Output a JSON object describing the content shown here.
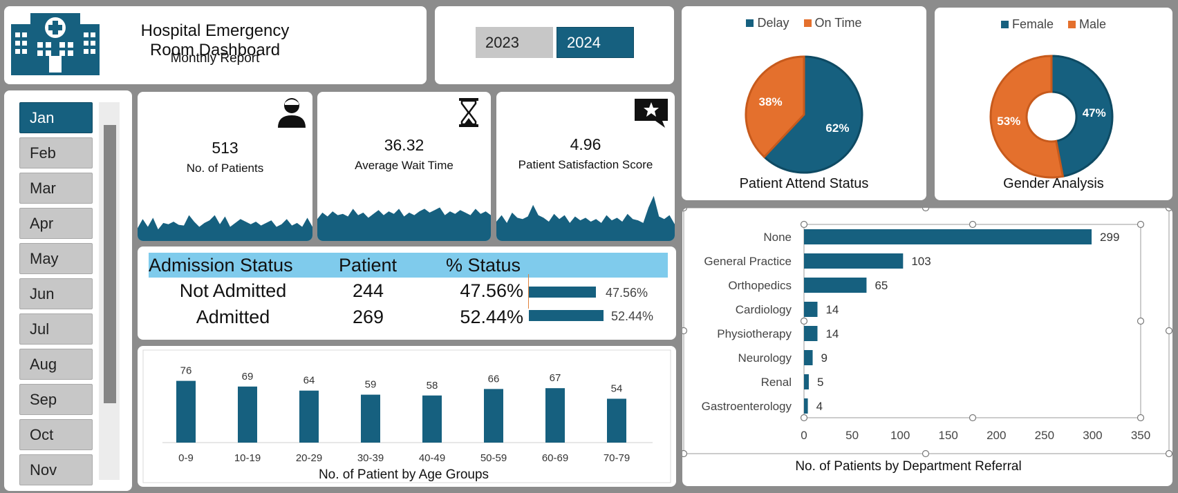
{
  "header": {
    "title": "Hospital Emergency Room Dashboard",
    "subtitle": "Monthly Report"
  },
  "years": [
    {
      "label": "2023",
      "selected": false
    },
    {
      "label": "2024",
      "selected": true
    }
  ],
  "months": [
    "Jan",
    "Feb",
    "Mar",
    "Apr",
    "May",
    "Jun",
    "Jul",
    "Aug",
    "Sep",
    "Oct",
    "Nov"
  ],
  "selected_month": "Jan",
  "icons": {
    "logo": "hospital-icon",
    "patients": "person-icon",
    "wait": "hourglass-icon",
    "satisfaction": "star-chat-icon"
  },
  "colors": {
    "primary": "#16607f",
    "accent": "#e4702d",
    "header_blue": "#7fcbec"
  },
  "kpis": {
    "patients": {
      "value": "513",
      "label": "No. of Patients"
    },
    "wait": {
      "value": "36.32",
      "label": "Average Wait Time"
    },
    "satisfaction": {
      "value": "4.96",
      "label": "Patient Satisfaction Score"
    }
  },
  "admission": {
    "headers": [
      "Admission Status",
      "Patient",
      "% Status"
    ],
    "rows": [
      {
        "status": "Not Admitted",
        "patients": "244",
        "pct": "47.56%",
        "bar_value": 47.56
      },
      {
        "status": "Admitted",
        "patients": "269",
        "pct": "52.44%",
        "bar_value": 52.44
      }
    ]
  },
  "chart_data": [
    {
      "type": "pie",
      "title": "Patient Attend Status",
      "legend": "top",
      "categories": [
        "Delay",
        "On Time"
      ],
      "values": [
        62,
        38
      ],
      "labels": [
        "62%",
        "38%"
      ],
      "colors": [
        "#16607f",
        "#e4702d"
      ]
    },
    {
      "type": "pie",
      "title": "Gender Analysis",
      "legend": "top",
      "categories": [
        "Female",
        "Male"
      ],
      "values": [
        47,
        53
      ],
      "labels": [
        "47%",
        "53%"
      ],
      "colors": [
        "#16607f",
        "#e4702d"
      ]
    },
    {
      "type": "bar",
      "title": "No. of Patient by Age Groups",
      "categories": [
        "0-9",
        "10-19",
        "20-29",
        "30-39",
        "40-49",
        "50-59",
        "60-69",
        "70-79"
      ],
      "values": [
        76,
        69,
        64,
        59,
        58,
        66,
        67,
        54
      ],
      "ylim": [
        0,
        85
      ]
    },
    {
      "type": "bar",
      "orientation": "horizontal",
      "title": "No. of Patients by Department Referral",
      "categories": [
        "None",
        "General Practice",
        "Orthopedics",
        "Cardiology",
        "Physiotherapy",
        "Neurology",
        "Renal",
        "Gastroenterology"
      ],
      "values": [
        299,
        103,
        65,
        14,
        14,
        9,
        5,
        4
      ],
      "xlim": [
        0,
        350
      ],
      "xticks": [
        "0",
        "50",
        "100",
        "150",
        "200",
        "250",
        "300",
        "350"
      ]
    },
    {
      "type": "area",
      "title": "",
      "series": [
        {
          "values": [
            20,
            34,
            22,
            36,
            18,
            28,
            26,
            30,
            25,
            24,
            40,
            30,
            22,
            28,
            32,
            40,
            26,
            38,
            22,
            28,
            34,
            30,
            26,
            30,
            24,
            28,
            32,
            22,
            26,
            34,
            24,
            28,
            22,
            36,
            22
          ]
        }
      ]
    },
    {
      "type": "area",
      "title": "",
      "series": [
        {
          "values": [
            34,
            44,
            38,
            46,
            40,
            42,
            38,
            50,
            40,
            44,
            36,
            42,
            48,
            40,
            46,
            42,
            50,
            38,
            44,
            40,
            46,
            50,
            44,
            48,
            52,
            40,
            46,
            42,
            48,
            44,
            40,
            50,
            42,
            46,
            40
          ]
        }
      ]
    },
    {
      "type": "area",
      "title": "",
      "series": [
        {
          "values": [
            30,
            40,
            28,
            44,
            36,
            34,
            38,
            56,
            40,
            36,
            30,
            42,
            34,
            40,
            28,
            38,
            32,
            36,
            30,
            34,
            28,
            40,
            32,
            36,
            30,
            42,
            34,
            32,
            28,
            52,
            70,
            38,
            34,
            40,
            26
          ]
        }
      ]
    }
  ]
}
